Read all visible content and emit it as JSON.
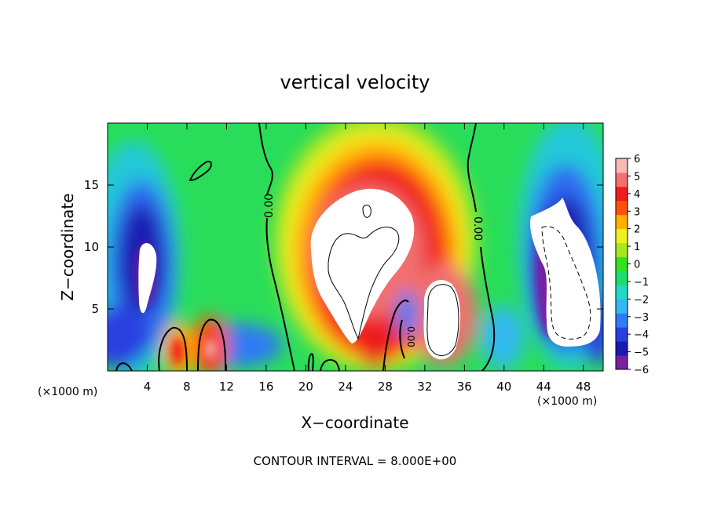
{
  "chart_data": {
    "type": "heatmap",
    "title": "vertical velocity",
    "xlabel": "X−coordinate",
    "ylabel": "Z−coordinate",
    "x_unit_left": "(×1000 m)",
    "x_unit_right": "(×1000 m)",
    "footer": "CONTOUR INTERVAL = 8.000E+00",
    "xlim": [
      0,
      50
    ],
    "ylim": [
      0,
      20
    ],
    "x_ticks": [
      4,
      8,
      12,
      16,
      20,
      24,
      28,
      32,
      36,
      40,
      44,
      48
    ],
    "y_ticks": [
      5,
      10,
      15
    ],
    "colorbar_ticks": [
      "6",
      "5",
      "4",
      "3",
      "2",
      "1",
      "0",
      "−1",
      "−2",
      "−3",
      "−4",
      "−5",
      "−6"
    ],
    "colorbar_range": [
      -6,
      6
    ],
    "contour_label": "0.00",
    "colormap": [
      "#7a1fa2",
      "#1a1ab0",
      "#2a3fe0",
      "#2f7af5",
      "#33b8f0",
      "#22d8c8",
      "#1fdc6e",
      "#35e11f",
      "#a8e620",
      "#f0f020",
      "#ffb000",
      "#ff5010",
      "#ee1c1c",
      "#f27070",
      "#f8b8b8"
    ]
  }
}
